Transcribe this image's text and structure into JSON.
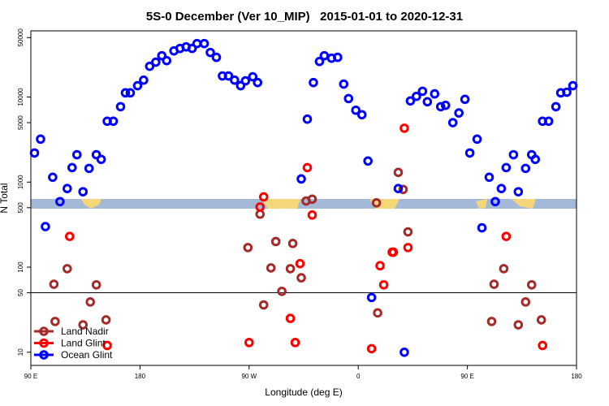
{
  "chart_data": {
    "type": "scatter",
    "title": "5S-0 December (Ver 10_MIP)   2015-01-01 to 2020-12-31",
    "xlabel": "Longitude (deg E)",
    "ylabel": "N Total",
    "xlim": [
      90,
      540
    ],
    "xticks": [
      {
        "value": 90,
        "label": "90 E"
      },
      {
        "value": 180,
        "label": "180"
      },
      {
        "value": 270,
        "label": "90 W"
      },
      {
        "value": 360,
        "label": "0"
      },
      {
        "value": 450,
        "label": "90 E"
      },
      {
        "value": 540,
        "label": "180"
      }
    ],
    "ylim": [
      7,
      60000
    ],
    "yscale": "log",
    "yticks": [
      10,
      50,
      100,
      500,
      1000,
      5000,
      10000,
      50000
    ],
    "hline": 50,
    "legend": "lower left",
    "series": [
      {
        "name": "Land Nadir",
        "color": "#a52a2a",
        "x": [
          109,
          110,
          120,
          133,
          139,
          144,
          152,
          269,
          279,
          282,
          288,
          292,
          297,
          304,
          306,
          313,
          317,
          322,
          375,
          376,
          393,
          397,
          401,
          470,
          472,
          480,
          492,
          498,
          503,
          511
        ],
        "values": [
          63,
          23,
          96,
          21,
          39,
          62,
          24,
          170,
          420,
          36,
          98,
          200,
          52,
          96,
          190,
          75,
          600,
          630,
          570,
          29,
          1300,
          820,
          260,
          23,
          63,
          96,
          21,
          39,
          62,
          24
        ]
      },
      {
        "name": "Land Glint",
        "color": "#ff0000",
        "x": [
          122,
          153,
          270,
          279,
          282,
          308,
          304,
          312,
          318,
          322,
          371,
          378,
          381,
          388,
          389,
          398,
          401,
          482,
          512
        ],
        "values": [
          230,
          12,
          13,
          510,
          670,
          13,
          25,
          110,
          1480,
          410,
          11,
          104,
          62,
          150,
          150,
          4300,
          170,
          230,
          12
        ]
      },
      {
        "name": "Ocean Glint",
        "color": "#0000ff",
        "x": [
          93,
          98,
          102,
          108,
          114,
          120,
          124,
          128,
          133,
          138,
          144,
          148,
          153,
          158,
          164,
          168,
          172,
          178,
          183,
          188,
          193,
          198,
          202,
          208,
          213,
          218,
          223,
          227,
          233,
          238,
          243,
          248,
          253,
          258,
          263,
          267,
          273,
          277,
          313,
          318,
          323,
          328,
          332,
          338,
          343,
          348,
          352,
          358,
          363,
          368,
          371,
          393,
          398,
          403,
          408,
          413,
          417,
          423,
          428,
          432,
          438,
          443,
          448,
          452,
          458,
          462,
          468,
          473,
          478,
          482,
          488,
          492,
          498,
          503,
          506,
          512,
          517,
          523,
          527,
          532,
          537
        ],
        "values": [
          2200,
          3200,
          300,
          1140,
          590,
          840,
          1480,
          2100,
          770,
          1450,
          2100,
          1850,
          5200,
          5200,
          7700,
          11200,
          11200,
          13600,
          15800,
          23000,
          25700,
          30600,
          26800,
          34900,
          37300,
          38900,
          37300,
          42500,
          42500,
          33400,
          29300,
          17700,
          17700,
          15800,
          13600,
          15500,
          17300,
          14800,
          1090,
          5500,
          14800,
          26200,
          30600,
          28600,
          29300,
          14200,
          9600,
          7000,
          6200,
          1770,
          44,
          840,
          10,
          9000,
          10200,
          11700,
          8800,
          10900,
          7700,
          8000,
          5000,
          6500,
          9400,
          2200,
          3200,
          290,
          1140,
          590,
          840,
          1480,
          2100,
          770,
          1450,
          2100,
          1850,
          5200,
          5200,
          7700,
          11200,
          11400,
          13600
        ]
      }
    ]
  }
}
